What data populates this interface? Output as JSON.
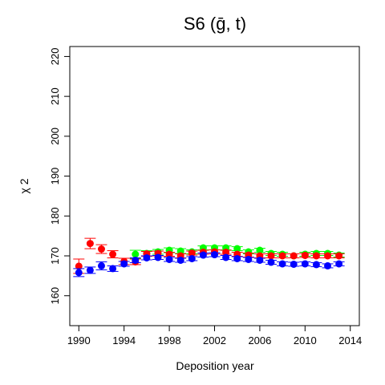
{
  "chart_data": {
    "type": "scatter",
    "title": "S6  (ḡ, t)",
    "xlabel": "Deposition year",
    "ylabel": "χ 2",
    "xlim": [
      1989.2,
      2014.8
    ],
    "ylim": [
      152.5,
      222.5
    ],
    "xticks": [
      1990,
      1994,
      1998,
      2002,
      2006,
      2010,
      2014
    ],
    "yticks": [
      160,
      170,
      180,
      190,
      200,
      210,
      220
    ],
    "grid": false,
    "legend": "none",
    "series": [
      {
        "color": "#00ff00",
        "x": [
          1995,
          1996,
          1997,
          1998,
          1999,
          2000,
          2001,
          2002,
          2003,
          2004,
          2005,
          2006,
          2007,
          2008,
          2009,
          2010,
          2011,
          2012,
          2013
        ],
        "y": [
          170.4,
          170.6,
          171.0,
          171.4,
          171.2,
          171.0,
          172.0,
          172.0,
          172.0,
          171.8,
          171.0,
          171.4,
          170.6,
          170.4,
          170.0,
          170.4,
          170.6,
          170.6,
          170.2
        ],
        "err": [
          1.0,
          0.7,
          0.6,
          0.6,
          0.6,
          0.5,
          0.5,
          0.5,
          0.5,
          0.5,
          0.5,
          0.5,
          0.5,
          0.5,
          0.5,
          0.5,
          0.5,
          0.5,
          0.5
        ]
      },
      {
        "color": "#ff0000",
        "x": [
          1990,
          1991,
          1992,
          1993,
          1994,
          1995,
          1996,
          1997,
          1998,
          1999,
          2000,
          2001,
          2002,
          2003,
          2004,
          2005,
          2006,
          2007,
          2008,
          2009,
          2010,
          2011,
          2012,
          2013
        ],
        "y": [
          167.4,
          173.1,
          171.7,
          170.4,
          168.6,
          168.5,
          170.5,
          170.6,
          170.4,
          170.0,
          170.7,
          170.9,
          171.0,
          170.9,
          170.4,
          170.2,
          170.0,
          170.0,
          170.0,
          170.0,
          170.1,
          170.0,
          170.0,
          170.0
        ],
        "err": [
          1.8,
          1.3,
          1.1,
          0.9,
          0.8,
          0.7,
          0.6,
          0.6,
          0.5,
          0.5,
          0.5,
          0.5,
          0.5,
          0.5,
          0.5,
          0.5,
          0.5,
          0.5,
          0.5,
          0.5,
          0.5,
          0.5,
          0.5,
          0.5
        ]
      },
      {
        "color": "#0000ff",
        "x": [
          1990,
          1991,
          1992,
          1993,
          1994,
          1995,
          1996,
          1997,
          1998,
          1999,
          2000,
          2001,
          2002,
          2003,
          2004,
          2005,
          2006,
          2007,
          2008,
          2009,
          2010,
          2011,
          2012,
          2013
        ],
        "y": [
          165.8,
          166.4,
          167.5,
          166.8,
          168.0,
          168.9,
          169.5,
          169.6,
          169.1,
          168.9,
          169.3,
          170.2,
          170.3,
          169.6,
          169.3,
          169.1,
          168.9,
          168.4,
          168.0,
          167.9,
          168.0,
          167.8,
          167.5,
          168.0
        ],
        "err": [
          1.0,
          0.8,
          1.0,
          0.7,
          0.6,
          0.6,
          0.5,
          0.5,
          0.5,
          0.5,
          0.5,
          0.5,
          0.5,
          0.5,
          0.5,
          0.5,
          0.5,
          0.5,
          0.5,
          0.5,
          0.5,
          0.5,
          0.5,
          0.5
        ]
      }
    ]
  }
}
